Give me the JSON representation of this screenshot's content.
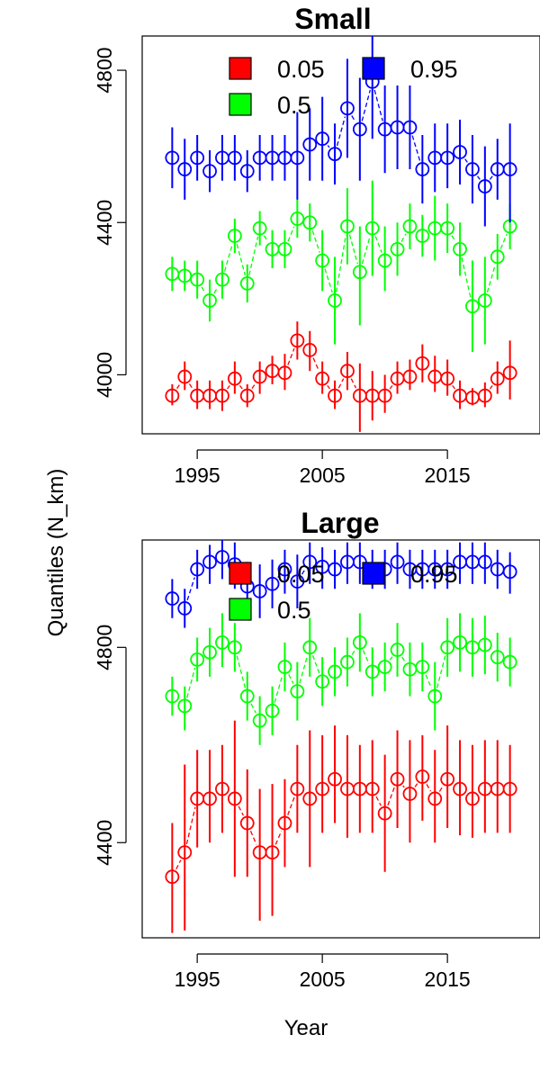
{
  "chart_data": [
    {
      "type": "scatter",
      "title": "Small",
      "xlabel": "",
      "ylabel": "",
      "xlim": [
        1990.6,
        2022.4
      ],
      "ylim": [
        3845,
        4890
      ],
      "x_ticks": [
        1995,
        2005,
        2015
      ],
      "x_tick_labels": [
        "1995",
        "2005",
        "2015"
      ],
      "y_ticks": [
        4000,
        4400,
        4800
      ],
      "y_tick_labels": [
        "4000",
        "4400",
        "4800"
      ],
      "legend": {
        "entries": [
          "0.05",
          "0.95",
          "0.5"
        ],
        "colors": [
          "#ff0000",
          "#0000ff",
          "#00ff00"
        ],
        "placement": "top"
      },
      "x": [
        1993,
        1994,
        1995,
        1996,
        1997,
        1998,
        1999,
        2000,
        2001,
        2002,
        2003,
        2004,
        2005,
        2006,
        2007,
        2008,
        2009,
        2010,
        2011,
        2012,
        2013,
        2014,
        2015,
        2016,
        2017,
        2018,
        2019,
        2020
      ],
      "series": [
        {
          "name": "0.05",
          "color": "#ff0000",
          "values": [
            3945,
            3995,
            3945,
            3945,
            3945,
            3990,
            3945,
            3995,
            4010,
            4005,
            4090,
            4065,
            3990,
            3945,
            4010,
            3945,
            3945,
            3945,
            3990,
            3995,
            4030,
            3995,
            3990,
            3945,
            3940,
            3945,
            3990,
            4005
          ],
          "low": [
            3920,
            3960,
            3910,
            3910,
            3905,
            3950,
            3915,
            3950,
            3975,
            3960,
            4040,
            4010,
            3950,
            3910,
            3960,
            3850,
            3880,
            3900,
            3950,
            3960,
            3980,
            3955,
            3945,
            3910,
            3920,
            3915,
            3950,
            3935
          ],
          "high": [
            3975,
            4035,
            3985,
            3985,
            3985,
            4035,
            3975,
            4035,
            4050,
            4055,
            4140,
            4115,
            4035,
            3985,
            4060,
            4030,
            4010,
            4000,
            4035,
            4040,
            4080,
            4050,
            4040,
            3985,
            3965,
            3980,
            4035,
            4090
          ]
        },
        {
          "name": "0.5",
          "color": "#00ff00",
          "values": [
            4265,
            4260,
            4250,
            4195,
            4250,
            4365,
            4240,
            4385,
            4330,
            4330,
            4410,
            4400,
            4300,
            4195,
            4390,
            4270,
            4385,
            4300,
            4330,
            4390,
            4365,
            4385,
            4385,
            4330,
            4180,
            4195,
            4310,
            4390
          ],
          "low": [
            4220,
            4220,
            4200,
            4140,
            4200,
            4320,
            4190,
            4340,
            4280,
            4280,
            4360,
            4350,
            4220,
            4080,
            4290,
            4130,
            4260,
            4220,
            4260,
            4330,
            4310,
            4300,
            4320,
            4260,
            4060,
            4080,
            4250,
            4330
          ],
          "high": [
            4310,
            4300,
            4300,
            4250,
            4300,
            4410,
            4290,
            4430,
            4380,
            4380,
            4460,
            4450,
            4380,
            4310,
            4490,
            4390,
            4510,
            4390,
            4400,
            4450,
            4420,
            4470,
            4450,
            4400,
            4300,
            4310,
            4370,
            4450
          ]
        },
        {
          "name": "0.95",
          "color": "#0000ff",
          "values": [
            4570,
            4540,
            4570,
            4535,
            4570,
            4570,
            4535,
            4570,
            4570,
            4570,
            4570,
            4605,
            4620,
            4580,
            4700,
            4645,
            4770,
            4645,
            4650,
            4650,
            4540,
            4570,
            4570,
            4585,
            4540,
            4495,
            4540,
            4540
          ],
          "low": [
            4490,
            4460,
            4510,
            4480,
            4510,
            4510,
            4480,
            4510,
            4510,
            4510,
            4460,
            4510,
            4510,
            4500,
            4570,
            4510,
            4620,
            4530,
            4540,
            4540,
            4450,
            4480,
            4490,
            4500,
            4450,
            4390,
            4460,
            4400
          ],
          "high": [
            4650,
            4620,
            4630,
            4590,
            4630,
            4630,
            4590,
            4630,
            4630,
            4630,
            4690,
            4700,
            4730,
            4660,
            4830,
            4780,
            4890,
            4760,
            4760,
            4760,
            4630,
            4660,
            4660,
            4670,
            4630,
            4600,
            4620,
            4660
          ]
        }
      ]
    },
    {
      "type": "scatter",
      "title": "Large",
      "xlabel": "Year",
      "ylabel": "Quantiles (N_km)",
      "xlim": [
        1990.6,
        2022.4
      ],
      "ylim": [
        4205,
        5020
      ],
      "x_ticks": [
        1995,
        2005,
        2015
      ],
      "x_tick_labels": [
        "1995",
        "2005",
        "2015"
      ],
      "y_ticks": [
        4400,
        4800
      ],
      "y_tick_labels": [
        "4400",
        "4800"
      ],
      "legend": {
        "entries": [
          "0.05",
          "0.95",
          "0.5"
        ],
        "colors": [
          "#ff0000",
          "#0000ff",
          "#00ff00"
        ],
        "placement": "top"
      },
      "x": [
        1993,
        1994,
        1995,
        1996,
        1997,
        1998,
        1999,
        2000,
        2001,
        2002,
        2003,
        2004,
        2005,
        2006,
        2007,
        2008,
        2009,
        2010,
        2011,
        2012,
        2013,
        2014,
        2015,
        2016,
        2017,
        2018,
        2019,
        2020
      ],
      "series": [
        {
          "name": "0.05",
          "color": "#ff0000",
          "values": [
            4330,
            4380,
            4490,
            4490,
            4510,
            4490,
            4440,
            4380,
            4380,
            4440,
            4510,
            4490,
            4510,
            4530,
            4510,
            4510,
            4510,
            4460,
            4530,
            4500,
            4535,
            4490,
            4530,
            4510,
            4490,
            4510,
            4510,
            4510
          ],
          "low": [
            4215,
            4220,
            4390,
            4400,
            4420,
            4330,
            4330,
            4240,
            4250,
            4350,
            4420,
            4350,
            4420,
            4440,
            4410,
            4420,
            4420,
            4340,
            4430,
            4400,
            4445,
            4400,
            4430,
            4415,
            4410,
            4420,
            4420,
            4420
          ],
          "high": [
            4440,
            4560,
            4590,
            4590,
            4600,
            4650,
            4550,
            4510,
            4520,
            4530,
            4600,
            4630,
            4620,
            4640,
            4620,
            4600,
            4610,
            4580,
            4630,
            4610,
            4620,
            4590,
            4640,
            4610,
            4600,
            4610,
            4610,
            4600
          ]
        },
        {
          "name": "0.5",
          "color": "#00ff00",
          "values": [
            4700,
            4680,
            4775,
            4790,
            4810,
            4800,
            4700,
            4650,
            4670,
            4760,
            4710,
            4800,
            4730,
            4750,
            4770,
            4810,
            4750,
            4760,
            4795,
            4755,
            4760,
            4700,
            4800,
            4810,
            4800,
            4805,
            4780,
            4770
          ],
          "low": [
            4660,
            4630,
            4730,
            4740,
            4760,
            4750,
            4650,
            4600,
            4620,
            4710,
            4650,
            4740,
            4680,
            4700,
            4720,
            4750,
            4700,
            4710,
            4740,
            4700,
            4710,
            4630,
            4740,
            4750,
            4740,
            4745,
            4730,
            4720
          ],
          "high": [
            4740,
            4720,
            4820,
            4840,
            4870,
            4850,
            4750,
            4700,
            4720,
            4810,
            4770,
            4860,
            4780,
            4800,
            4820,
            4870,
            4800,
            4810,
            4850,
            4810,
            4810,
            4770,
            4860,
            4870,
            4860,
            4865,
            4830,
            4820
          ]
        },
        {
          "name": "0.95",
          "color": "#0000ff",
          "values": [
            4900,
            4880,
            4960,
            4975,
            4985,
            4970,
            4925,
            4915,
            4930,
            4960,
            4935,
            4975,
            4965,
            4960,
            4975,
            4975,
            4960,
            4960,
            4975,
            4960,
            4960,
            4960,
            4960,
            4975,
            4975,
            4975,
            4960,
            4955
          ],
          "low": [
            4860,
            4840,
            4920,
            4930,
            4940,
            4920,
            4870,
            4860,
            4880,
            4910,
            4880,
            4930,
            4920,
            4920,
            4930,
            4930,
            4920,
            4920,
            4930,
            4920,
            4920,
            4920,
            4920,
            4930,
            4930,
            4930,
            4920,
            4910
          ],
          "high": [
            4940,
            4920,
            5000,
            5010,
            5020,
            5015,
            4975,
            4970,
            4980,
            5000,
            4990,
            5015,
            5005,
            5000,
            5015,
            5015,
            5000,
            5000,
            5015,
            5000,
            5000,
            5000,
            5000,
            5015,
            5015,
            5015,
            5000,
            4995
          ]
        }
      ]
    }
  ]
}
